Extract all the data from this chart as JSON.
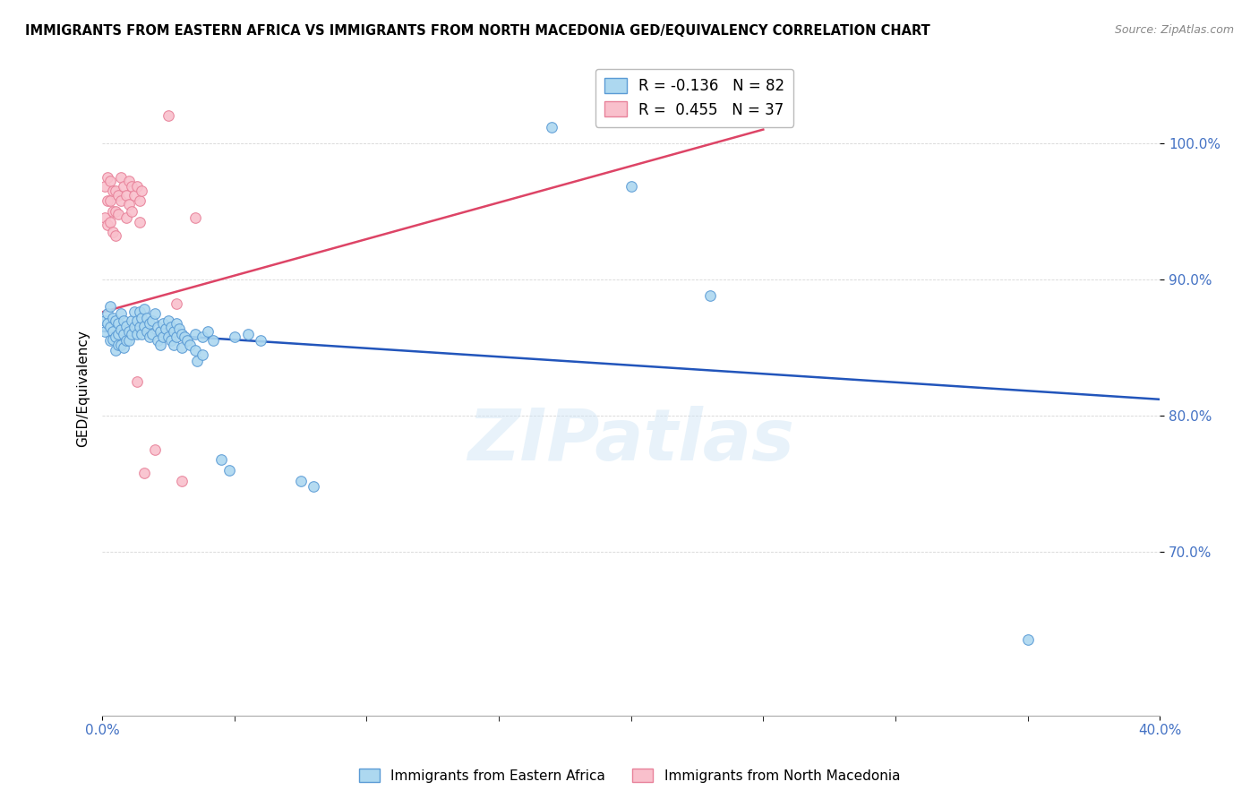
{
  "title": "IMMIGRANTS FROM EASTERN AFRICA VS IMMIGRANTS FROM NORTH MACEDONIA GED/EQUIVALENCY CORRELATION CHART",
  "source": "Source: ZipAtlas.com",
  "ylabel": "GED/Equivalency",
  "series1_label": "Immigrants from Eastern Africa",
  "series2_label": "Immigrants from North Macedonia",
  "series1_color": "#add8f0",
  "series2_color": "#f9c0cc",
  "series1_edge_color": "#5b9bd5",
  "series2_edge_color": "#e8829a",
  "trendline1_color": "#2255bb",
  "trendline2_color": "#dd4466",
  "R1": -0.136,
  "N1": 82,
  "R2": 0.455,
  "N2": 37,
  "xlim": [
    0.0,
    0.4
  ],
  "ylim": [
    0.58,
    1.06
  ],
  "watermark": "ZIPatlas",
  "blue_dots": [
    [
      0.001,
      0.862
    ],
    [
      0.001,
      0.87
    ],
    [
      0.002,
      0.875
    ],
    [
      0.002,
      0.868
    ],
    [
      0.003,
      0.88
    ],
    [
      0.003,
      0.865
    ],
    [
      0.003,
      0.855
    ],
    [
      0.004,
      0.872
    ],
    [
      0.004,
      0.862
    ],
    [
      0.004,
      0.856
    ],
    [
      0.005,
      0.87
    ],
    [
      0.005,
      0.858
    ],
    [
      0.005,
      0.848
    ],
    [
      0.006,
      0.868
    ],
    [
      0.006,
      0.86
    ],
    [
      0.006,
      0.852
    ],
    [
      0.007,
      0.875
    ],
    [
      0.007,
      0.863
    ],
    [
      0.007,
      0.852
    ],
    [
      0.008,
      0.87
    ],
    [
      0.008,
      0.86
    ],
    [
      0.008,
      0.85
    ],
    [
      0.009,
      0.866
    ],
    [
      0.009,
      0.855
    ],
    [
      0.01,
      0.862
    ],
    [
      0.01,
      0.855
    ],
    [
      0.011,
      0.87
    ],
    [
      0.011,
      0.86
    ],
    [
      0.012,
      0.876
    ],
    [
      0.012,
      0.865
    ],
    [
      0.013,
      0.87
    ],
    [
      0.013,
      0.86
    ],
    [
      0.014,
      0.876
    ],
    [
      0.014,
      0.865
    ],
    [
      0.015,
      0.872
    ],
    [
      0.015,
      0.86
    ],
    [
      0.016,
      0.878
    ],
    [
      0.016,
      0.866
    ],
    [
      0.017,
      0.872
    ],
    [
      0.017,
      0.862
    ],
    [
      0.018,
      0.868
    ],
    [
      0.018,
      0.858
    ],
    [
      0.019,
      0.87
    ],
    [
      0.019,
      0.86
    ],
    [
      0.02,
      0.875
    ],
    [
      0.021,
      0.865
    ],
    [
      0.021,
      0.855
    ],
    [
      0.022,
      0.862
    ],
    [
      0.022,
      0.852
    ],
    [
      0.023,
      0.868
    ],
    [
      0.023,
      0.858
    ],
    [
      0.024,
      0.864
    ],
    [
      0.025,
      0.87
    ],
    [
      0.025,
      0.858
    ],
    [
      0.026,
      0.865
    ],
    [
      0.026,
      0.855
    ],
    [
      0.027,
      0.862
    ],
    [
      0.027,
      0.852
    ],
    [
      0.028,
      0.868
    ],
    [
      0.028,
      0.858
    ],
    [
      0.029,
      0.864
    ],
    [
      0.03,
      0.86
    ],
    [
      0.03,
      0.85
    ],
    [
      0.031,
      0.858
    ],
    [
      0.032,
      0.855
    ],
    [
      0.033,
      0.852
    ],
    [
      0.035,
      0.86
    ],
    [
      0.035,
      0.848
    ],
    [
      0.036,
      0.84
    ],
    [
      0.038,
      0.858
    ],
    [
      0.038,
      0.845
    ],
    [
      0.04,
      0.862
    ],
    [
      0.042,
      0.855
    ],
    [
      0.045,
      0.768
    ],
    [
      0.048,
      0.76
    ],
    [
      0.05,
      0.858
    ],
    [
      0.055,
      0.86
    ],
    [
      0.06,
      0.855
    ],
    [
      0.075,
      0.752
    ],
    [
      0.08,
      0.748
    ],
    [
      0.17,
      1.012
    ],
    [
      0.2,
      0.968
    ],
    [
      0.23,
      0.888
    ],
    [
      0.35,
      0.636
    ]
  ],
  "pink_dots": [
    [
      0.001,
      0.968
    ],
    [
      0.001,
      0.945
    ],
    [
      0.002,
      0.975
    ],
    [
      0.002,
      0.958
    ],
    [
      0.002,
      0.94
    ],
    [
      0.003,
      0.972
    ],
    [
      0.003,
      0.958
    ],
    [
      0.003,
      0.942
    ],
    [
      0.004,
      0.965
    ],
    [
      0.004,
      0.95
    ],
    [
      0.004,
      0.935
    ],
    [
      0.005,
      0.965
    ],
    [
      0.005,
      0.95
    ],
    [
      0.005,
      0.932
    ],
    [
      0.006,
      0.962
    ],
    [
      0.006,
      0.948
    ],
    [
      0.007,
      0.975
    ],
    [
      0.007,
      0.958
    ],
    [
      0.008,
      0.968
    ],
    [
      0.009,
      0.962
    ],
    [
      0.009,
      0.945
    ],
    [
      0.01,
      0.972
    ],
    [
      0.01,
      0.955
    ],
    [
      0.011,
      0.968
    ],
    [
      0.011,
      0.95
    ],
    [
      0.012,
      0.962
    ],
    [
      0.013,
      0.968
    ],
    [
      0.013,
      0.825
    ],
    [
      0.014,
      0.958
    ],
    [
      0.014,
      0.942
    ],
    [
      0.015,
      0.965
    ],
    [
      0.016,
      0.758
    ],
    [
      0.02,
      0.775
    ],
    [
      0.025,
      1.02
    ],
    [
      0.028,
      0.882
    ],
    [
      0.03,
      0.752
    ],
    [
      0.035,
      0.945
    ]
  ],
  "trendline1_x": [
    0.0,
    0.4
  ],
  "trendline1_y": [
    0.862,
    0.812
  ],
  "trendline2_x": [
    0.0,
    0.25
  ],
  "trendline2_y": [
    0.876,
    1.01
  ]
}
